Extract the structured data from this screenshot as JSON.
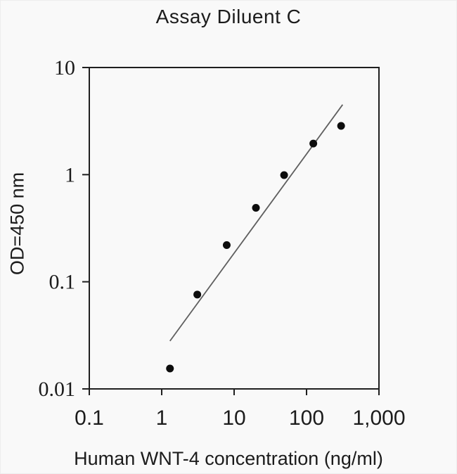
{
  "chart_data": {
    "type": "scatter",
    "title": "Assay Diluent C",
    "xlabel": "Human WNT-4 concentration (ng/ml)",
    "ylabel": "OD=450 nm",
    "x_scale": "log",
    "y_scale": "log",
    "xlim": [
      0.1,
      1000
    ],
    "ylim": [
      0.01,
      10
    ],
    "grid": false,
    "legend": "none",
    "x_ticks": [
      {
        "value": 0.1,
        "label": "0.1"
      },
      {
        "value": 1,
        "label": "1"
      },
      {
        "value": 10,
        "label": "10"
      },
      {
        "value": 100,
        "label": "100"
      },
      {
        "value": 1000,
        "label": "1,000"
      }
    ],
    "y_ticks": [
      {
        "value": 10,
        "label": "10"
      },
      {
        "value": 1,
        "label": "1"
      },
      {
        "value": 0.1,
        "label": "0.1"
      },
      {
        "value": 0.01,
        "label": "0.01"
      }
    ],
    "series": [
      {
        "name": "standard-curve-points",
        "marker": "filled-circle",
        "points": [
          [
            1.3,
            0.0155
          ],
          [
            3.1,
            0.076
          ],
          [
            7.9,
            0.22
          ],
          [
            20,
            0.49
          ],
          [
            49,
            0.99
          ],
          [
            124,
            1.95
          ],
          [
            300,
            2.85
          ]
        ]
      }
    ],
    "trendline": {
      "x1": 1.3,
      "y1": 0.028,
      "x2": 315,
      "y2": 4.5
    },
    "colors": {
      "frame": "#1f1f1f",
      "tick": "#1f1f1f",
      "marker": "#0d0d0d",
      "trendline": "#5f5f5f",
      "text": "#1c1c1c",
      "background": "#f9f9f9"
    }
  }
}
